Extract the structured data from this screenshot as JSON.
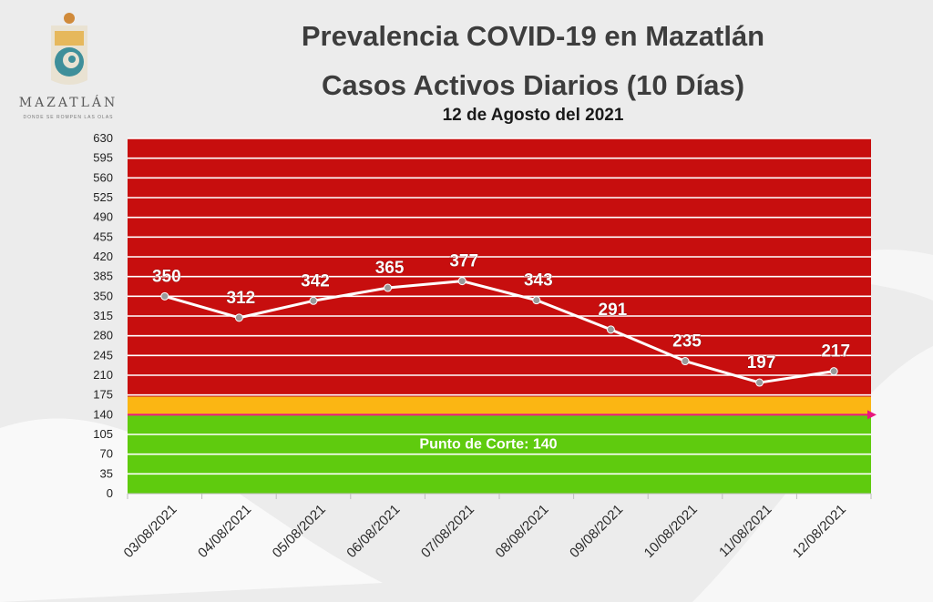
{
  "logo": {
    "name": "MAZATLÁN",
    "tagline": "DONDE SE ROMPEN LAS OLAS"
  },
  "chart_data": {
    "type": "line",
    "title": "Prevalencia COVID-19 en Mazatlán",
    "subtitle": "Casos Activos Diarios (10 Días)",
    "date_line": "12 de Agosto del 2021",
    "categories": [
      "03/08/2021",
      "04/08/2021",
      "05/08/2021",
      "06/08/2021",
      "07/08/2021",
      "08/08/2021",
      "09/08/2021",
      "10/08/2021",
      "11/08/2021",
      "12/08/2021"
    ],
    "values": [
      350,
      312,
      342,
      365,
      377,
      343,
      291,
      235,
      197,
      217
    ],
    "ylim": [
      0,
      630
    ],
    "yticks": [
      0,
      35,
      70,
      105,
      140,
      175,
      210,
      245,
      280,
      315,
      350,
      385,
      420,
      455,
      490,
      525,
      560,
      595,
      630
    ],
    "grid": true,
    "bands": [
      {
        "from": 0,
        "to": 140,
        "color": "#5fcb0e"
      },
      {
        "from": 140,
        "to": 172,
        "color": "#fbb613"
      },
      {
        "from": 172,
        "to": 630,
        "color": "#c70e0e"
      }
    ],
    "threshold": {
      "value": 140,
      "label": "Punto de Corte: 140",
      "color": "#e8177d"
    },
    "line_color": "#ffffff",
    "marker_color": "#9a9a9a"
  }
}
